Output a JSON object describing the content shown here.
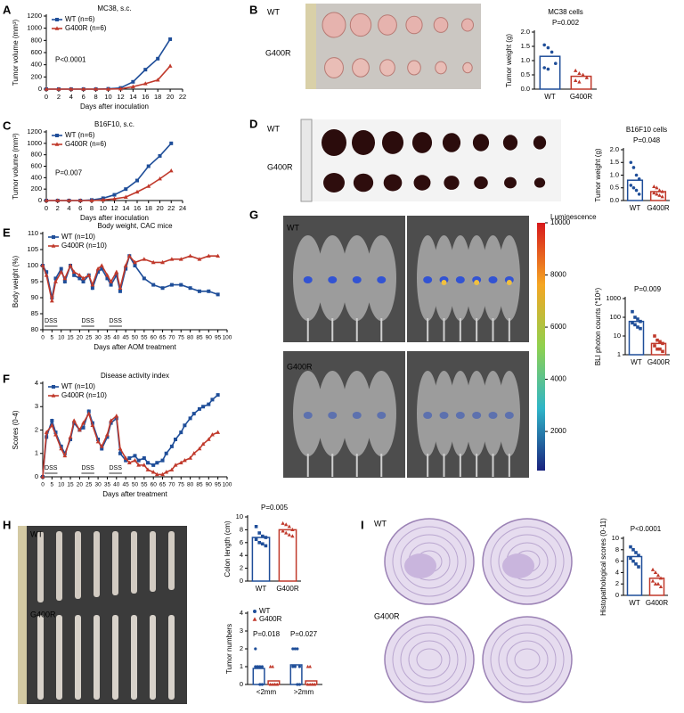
{
  "chart_data": [
    {
      "type": "line",
      "panel": "A",
      "title": "MC38, s.c.",
      "xlabel": "Days after inoculation",
      "ylabel": "Tumor volume (mm³)",
      "annotation": "P<0.0001",
      "x": [
        0,
        2,
        4,
        6,
        8,
        10,
        12,
        14,
        16,
        18,
        20
      ],
      "series": [
        {
          "name": "WT (n=6)",
          "color": "#1f4e99",
          "marker": "square",
          "values": [
            0,
            0,
            0,
            0,
            0,
            5,
            20,
            120,
            320,
            500,
            820
          ]
        },
        {
          "name": "G400R (n=6)",
          "color": "#c0392b",
          "marker": "triangle",
          "values": [
            0,
            0,
            0,
            0,
            0,
            0,
            5,
            40,
            90,
            150,
            380
          ]
        }
      ],
      "xlim": [
        0,
        22
      ],
      "xticks": [
        0,
        2,
        4,
        6,
        8,
        10,
        12,
        14,
        16,
        18,
        20,
        22
      ],
      "ylim": [
        0,
        1200
      ],
      "yticks": [
        0,
        200,
        400,
        600,
        800,
        1000,
        1200
      ]
    },
    {
      "type": "bar",
      "title": "MC38 cells",
      "ylabel": "Tumor weight (g)",
      "annotation": "P=0.002",
      "categories": [
        "WT",
        "G400R"
      ],
      "colors": [
        "#1f4e99",
        "#c0392b"
      ],
      "markers": [
        "circle",
        "triangle"
      ],
      "values": [
        1.15,
        0.45
      ],
      "points": [
        [
          1.55,
          1.45,
          1.3,
          0.9,
          0.75,
          0.7
        ],
        [
          0.65,
          0.55,
          0.5,
          0.4,
          0.3,
          0.25
        ]
      ],
      "ylim": [
        0,
        2
      ],
      "yticks": [
        {
          "value": 0,
          "label": "0.0"
        },
        0.5,
        {
          "value": 1,
          "label": "1.0"
        },
        1.5,
        {
          "value": 2,
          "label": "2.0"
        }
      ]
    },
    {
      "type": "line",
      "panel": "C",
      "title": "B16F10, s.c.",
      "xlabel": "Days after inoculation",
      "ylabel": "Tumor volume (mm³)",
      "annotation": "P=0.007",
      "x": [
        0,
        2,
        4,
        6,
        8,
        10,
        12,
        14,
        16,
        18,
        20,
        22
      ],
      "series": [
        {
          "name": "WT (n=6)",
          "color": "#1f4e99",
          "marker": "square",
          "values": [
            0,
            0,
            0,
            0,
            10,
            40,
            100,
            200,
            350,
            600,
            780,
            1000
          ]
        },
        {
          "name": "G400R (n=6)",
          "color": "#c0392b",
          "marker": "triangle",
          "values": [
            0,
            0,
            0,
            0,
            0,
            10,
            30,
            60,
            150,
            250,
            380,
            520
          ]
        }
      ],
      "xlim": [
        0,
        24
      ],
      "xticks": [
        0,
        2,
        4,
        6,
        8,
        10,
        12,
        14,
        16,
        18,
        20,
        22,
        24
      ],
      "ylim": [
        0,
        1200
      ],
      "yticks": [
        0,
        200,
        400,
        600,
        800,
        1000,
        1200
      ]
    },
    {
      "type": "bar",
      "title": "B16F10 cells",
      "ylabel": "Tumor weight (g)",
      "annotation": "P=0.048",
      "categories": [
        "WT",
        "G400R"
      ],
      "colors": [
        "#1f4e99",
        "#c0392b"
      ],
      "markers": [
        "circle",
        "triangle"
      ],
      "values": [
        0.8,
        0.35
      ],
      "points": [
        [
          1.5,
          1.3,
          1.0,
          0.85,
          0.6,
          0.5,
          0.4,
          0.25
        ],
        [
          0.55,
          0.5,
          0.4,
          0.35,
          0.3,
          0.25,
          0.2,
          0.15
        ]
      ],
      "ylim": [
        0,
        2
      ],
      "yticks": [
        {
          "value": 0,
          "label": "0.0"
        },
        0.5,
        {
          "value": 1,
          "label": "1.0"
        },
        1.5,
        {
          "value": 2,
          "label": "2.0"
        }
      ]
    },
    {
      "type": "line",
      "panel": "E",
      "title": "Body weight, CAC mice",
      "xlabel": "Days after AOM treatment",
      "ylabel": "Body weight (%)",
      "dss_labels": [
        "DSS",
        "DSS",
        "DSS"
      ],
      "x": [
        0,
        2,
        5,
        7,
        10,
        12,
        15,
        17,
        20,
        22,
        25,
        27,
        30,
        32,
        35,
        37,
        40,
        42,
        45,
        47,
        50,
        55,
        60,
        65,
        70,
        75,
        80,
        85,
        90,
        95
      ],
      "series": [
        {
          "name": "WT (n=10)",
          "color": "#1f4e99",
          "marker": "square",
          "values": [
            100,
            98,
            90,
            96,
            99,
            95,
            100,
            97,
            96,
            95,
            97,
            93,
            98,
            99,
            96,
            94,
            97,
            92,
            99,
            103,
            100,
            96,
            94,
            93,
            94,
            94,
            93,
            92,
            92,
            91
          ]
        },
        {
          "name": "G400R (n=10)",
          "color": "#c0392b",
          "marker": "triangle",
          "values": [
            100,
            97,
            89,
            95,
            98,
            96,
            100,
            98,
            97,
            96,
            97,
            94,
            99,
            100,
            97,
            95,
            98,
            93,
            100,
            103,
            101,
            102,
            101,
            101,
            102,
            102,
            103,
            102,
            103,
            103
          ]
        }
      ],
      "xlim": [
        0,
        100
      ],
      "xticks": [
        0,
        5,
        10,
        15,
        20,
        25,
        30,
        35,
        40,
        45,
        50,
        55,
        60,
        65,
        70,
        75,
        80,
        85,
        90,
        95,
        100
      ],
      "ylim": [
        80,
        110
      ],
      "yticks": [
        80,
        85,
        90,
        95,
        100,
        105,
        110
      ]
    },
    {
      "type": "line",
      "panel": "F",
      "title": "Disease activity index",
      "xlabel": "Days after treatment",
      "ylabel": "Scores (0-4)",
      "dss_labels": [
        "DSS",
        "DSS",
        "DSS"
      ],
      "x": [
        0,
        2,
        5,
        7,
        10,
        12,
        15,
        17,
        20,
        22,
        25,
        27,
        30,
        32,
        35,
        37,
        40,
        42,
        45,
        47,
        50,
        52,
        55,
        57,
        60,
        62,
        65,
        67,
        70,
        72,
        75,
        77,
        80,
        82,
        85,
        87,
        90,
        92,
        95
      ],
      "series": [
        {
          "name": "WT (n=10)",
          "color": "#1f4e99",
          "marker": "square",
          "values": [
            0,
            1.7,
            2.4,
            1.9,
            1.3,
            1.0,
            1.6,
            2.3,
            2.0,
            2.1,
            2.8,
            2.3,
            1.6,
            1.2,
            1.7,
            2.3,
            2.5,
            1.0,
            0.7,
            0.8,
            0.9,
            0.7,
            0.8,
            0.6,
            0.5,
            0.6,
            0.7,
            1.0,
            1.3,
            1.6,
            1.9,
            2.2,
            2.5,
            2.7,
            2.9,
            3.0,
            3.1,
            3.3,
            3.5
          ]
        },
        {
          "name": "G400R (n=10)",
          "color": "#c0392b",
          "marker": "triangle",
          "values": [
            0,
            1.9,
            2.2,
            1.8,
            1.2,
            0.9,
            1.7,
            2.4,
            2.0,
            2.3,
            2.7,
            2.2,
            1.5,
            1.3,
            1.8,
            2.4,
            2.6,
            1.2,
            0.8,
            0.6,
            0.7,
            0.5,
            0.5,
            0.3,
            0.2,
            0.1,
            0.1,
            0.2,
            0.3,
            0.5,
            0.6,
            0.7,
            0.8,
            1.0,
            1.2,
            1.4,
            1.6,
            1.8,
            1.9
          ]
        }
      ],
      "xlim": [
        0,
        100
      ],
      "xticks": [
        0,
        5,
        10,
        15,
        20,
        25,
        30,
        35,
        40,
        45,
        50,
        55,
        60,
        65,
        70,
        75,
        80,
        85,
        90,
        95,
        100
      ],
      "ylim": [
        0,
        4
      ],
      "yticks": [
        0,
        1,
        2,
        3,
        4
      ]
    },
    {
      "type": "bar",
      "ylabel": "BLI photon counts (*10⁶)",
      "annotation": "P=0.009",
      "log": true,
      "categories": [
        "WT",
        "G400R"
      ],
      "colors": [
        "#1f4e99",
        "#c0392b"
      ],
      "markers": [
        "square",
        "square"
      ],
      "values": [
        60,
        4
      ],
      "points": [
        [
          200,
          100,
          80,
          60,
          50,
          40,
          30,
          25
        ],
        [
          10,
          6,
          5,
          4,
          3,
          2,
          2,
          1.5
        ]
      ],
      "ylim": [
        1,
        1000
      ],
      "yticks": [
        1,
        10,
        100,
        1000
      ]
    },
    {
      "type": "bar",
      "ylabel": "Colon length (cm)",
      "annotation": "P=0.005",
      "categories": [
        "WT",
        "G400R"
      ],
      "colors": [
        "#1f4e99",
        "#c0392b"
      ],
      "markers": [
        "square",
        "triangle"
      ],
      "values": [
        6.8,
        8.0
      ],
      "points": [
        [
          8.5,
          7.5,
          7.0,
          6.8,
          6.5,
          6.0,
          5.8,
          5.5
        ],
        [
          9.0,
          8.8,
          8.5,
          8.0,
          7.8,
          7.5,
          7.2,
          7.0
        ]
      ],
      "ylim": [
        0,
        10
      ],
      "yticks": [
        0,
        2,
        4,
        6,
        8,
        10
      ]
    },
    {
      "type": "grouped-bar",
      "ylabel": "Tumor numbers",
      "annotations": [
        "P=0.018",
        "P=0.027"
      ],
      "legend": "top-left",
      "categories": [
        "<2mm",
        ">2mm"
      ],
      "series": [
        {
          "name": "WT",
          "color": "#1f4e99",
          "marker": "circle",
          "values": [
            0.9,
            1.1
          ],
          "points": [
            [
              2,
              1,
              1,
              1,
              1,
              1,
              0,
              0
            ],
            [
              2,
              2,
              2,
              1,
              1,
              1,
              0,
              0
            ]
          ]
        },
        {
          "name": "G400R",
          "color": "#c0392b",
          "marker": "triangle",
          "values": [
            0.2,
            0.2
          ],
          "points": [
            [
              1,
              1,
              0,
              0,
              0,
              0,
              0,
              0
            ],
            [
              1,
              1,
              0,
              0,
              0,
              0,
              0,
              0
            ]
          ]
        }
      ],
      "ylim": [
        0,
        4
      ],
      "yticks": [
        0,
        1,
        2,
        3,
        4
      ]
    },
    {
      "type": "bar",
      "ylabel": "Histopathological scores (0-11)",
      "annotation": "P<0.0001",
      "categories": [
        "WT",
        "G400R"
      ],
      "colors": [
        "#1f4e99",
        "#c0392b"
      ],
      "markers": [
        "square",
        "triangle"
      ],
      "values": [
        6.8,
        3.0
      ],
      "points": [
        [
          8.5,
          8.0,
          7.5,
          7.0,
          6.5,
          6.0,
          5.5,
          5.0
        ],
        [
          4.5,
          4.0,
          3.5,
          3.0,
          2.5,
          2.0,
          2.0,
          1.5
        ]
      ],
      "ylim": [
        0,
        10
      ],
      "yticks": [
        0,
        2,
        4,
        6,
        8,
        10
      ]
    }
  ],
  "images": [
    {
      "panel": "B",
      "labels": [
        "WT",
        "G400R"
      ]
    },
    {
      "panel": "D",
      "labels": [
        "WT",
        "G400R"
      ]
    },
    {
      "panel": "G",
      "labels": [
        "WT",
        "G400R"
      ],
      "colorbar": {
        "title": "Luminescence",
        "lim": [
          500,
          10000
        ],
        "ticks": [
          2000,
          4000,
          6000,
          8000,
          10000
        ]
      }
    },
    {
      "panel": "H",
      "labels": [
        "WT",
        "G400R"
      ]
    },
    {
      "panel": "I",
      "labels": [
        "WT",
        "G400R"
      ]
    }
  ]
}
